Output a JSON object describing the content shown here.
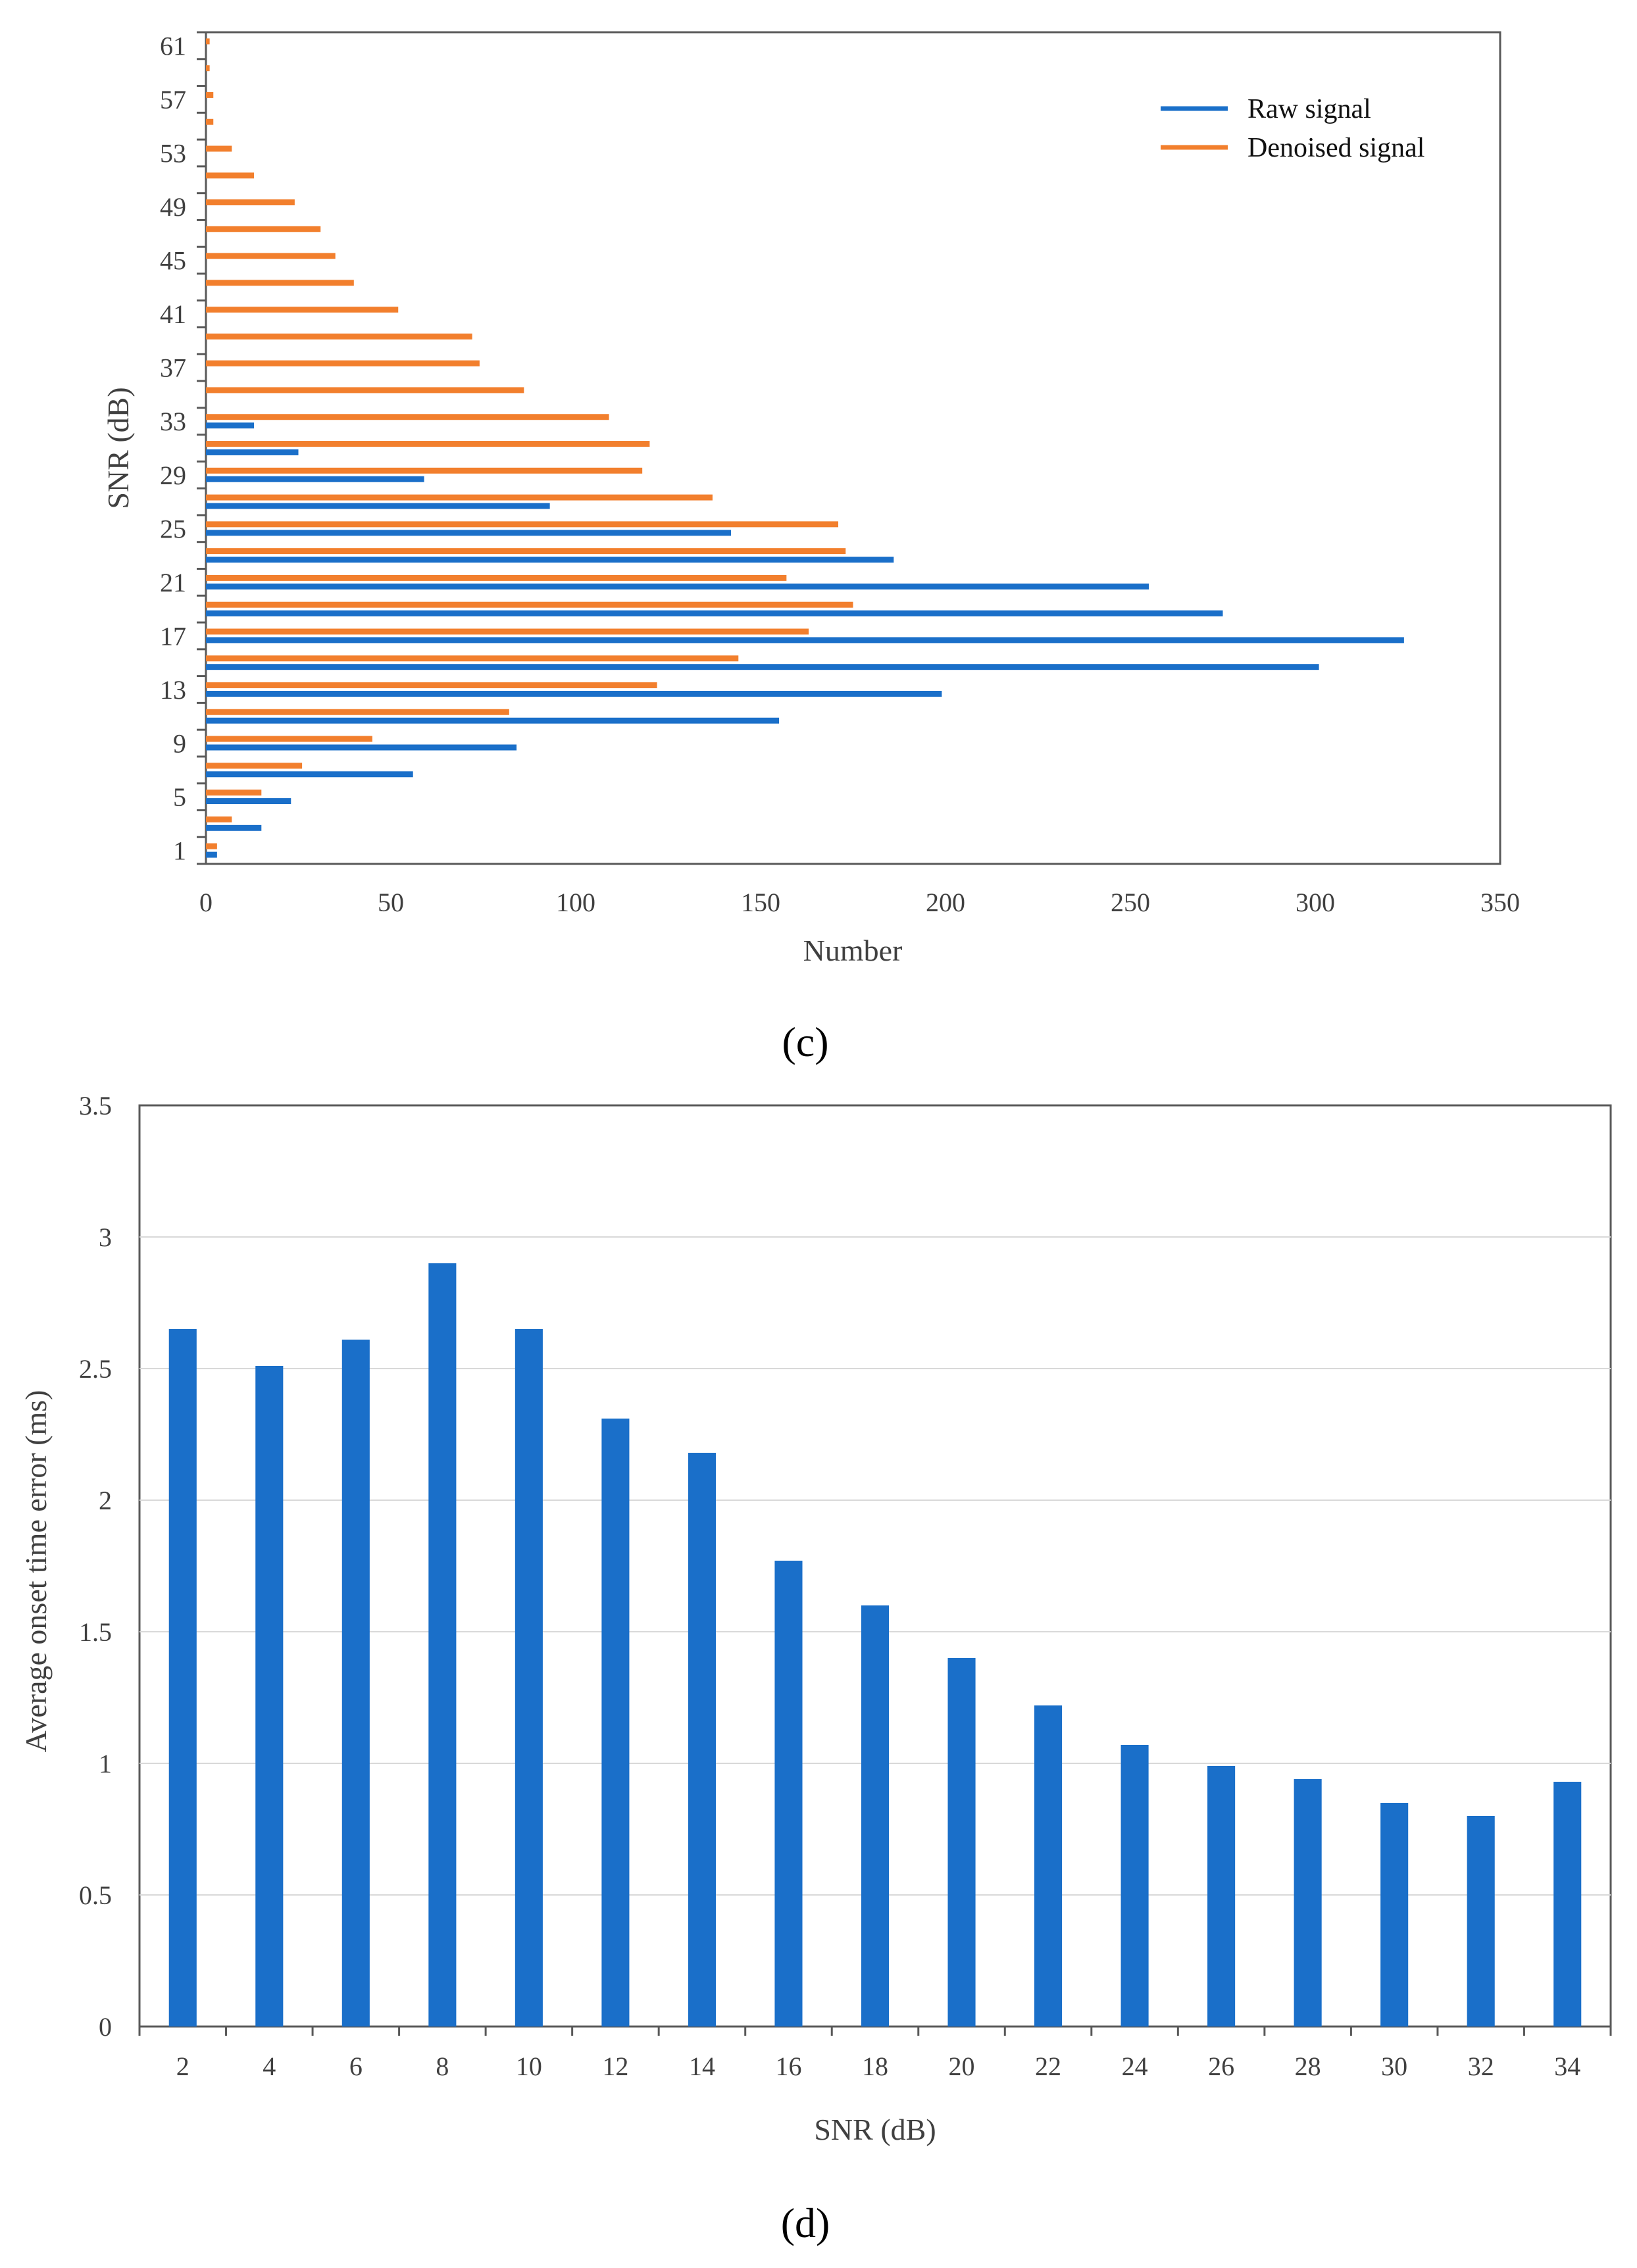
{
  "chart_data": [
    {
      "type": "bar",
      "orientation": "horizontal",
      "panel_label": "(c)",
      "xlabel": "Number",
      "ylabel": "SNR (dB)",
      "xlim": [
        0,
        350
      ],
      "x_ticks": [
        "0",
        "50",
        "100",
        "150",
        "200",
        "250",
        "300",
        "350"
      ],
      "y_ticks": [
        "1",
        "5",
        "9",
        "13",
        "17",
        "21",
        "25",
        "29",
        "33",
        "37",
        "41",
        "45",
        "49",
        "53",
        "57",
        "61"
      ],
      "categories": [
        1,
        3,
        5,
        7,
        9,
        11,
        13,
        15,
        17,
        19,
        21,
        23,
        25,
        27,
        29,
        31,
        33,
        35,
        37,
        39,
        41,
        43,
        45,
        47,
        49,
        51,
        53,
        55,
        57,
        59,
        61
      ],
      "legend_position": "top-right",
      "series": [
        {
          "name": "Raw signal",
          "color": "#1a6fc9",
          "values": [
            3,
            15,
            23,
            56,
            84,
            155,
            199,
            301,
            324,
            275,
            255,
            186,
            142,
            93,
            59,
            25,
            13,
            0,
            0,
            0,
            0,
            0,
            0,
            0,
            0,
            0,
            0,
            0,
            0,
            0,
            0
          ]
        },
        {
          "name": "Denoised signal",
          "color": "#f27f2d",
          "values": [
            3,
            7,
            15,
            26,
            45,
            82,
            122,
            144,
            163,
            175,
            157,
            173,
            171,
            137,
            118,
            120,
            109,
            86,
            74,
            72,
            52,
            40,
            35,
            31,
            24,
            13,
            7,
            2,
            2,
            1,
            1
          ]
        }
      ]
    },
    {
      "type": "bar",
      "panel_label": "(d)",
      "xlabel": "SNR (dB)",
      "ylabel": "Average onset time error (ms)",
      "ylim": [
        0,
        3.5
      ],
      "y_ticks": [
        "0",
        "0.5",
        "1",
        "1.5",
        "2",
        "2.5",
        "3",
        "3.5"
      ],
      "grid": true,
      "categories": [
        "2",
        "4",
        "6",
        "8",
        "10",
        "12",
        "14",
        "16",
        "18",
        "20",
        "22",
        "24",
        "26",
        "28",
        "30",
        "32",
        "34"
      ],
      "series": [
        {
          "name": "Average onset time error",
          "color": "#1a6fc9",
          "values": [
            2.65,
            2.51,
            2.61,
            2.9,
            2.65,
            2.31,
            2.18,
            1.77,
            1.6,
            1.4,
            1.22,
            1.07,
            0.99,
            0.94,
            0.85,
            0.8,
            0.93
          ]
        }
      ]
    }
  ]
}
